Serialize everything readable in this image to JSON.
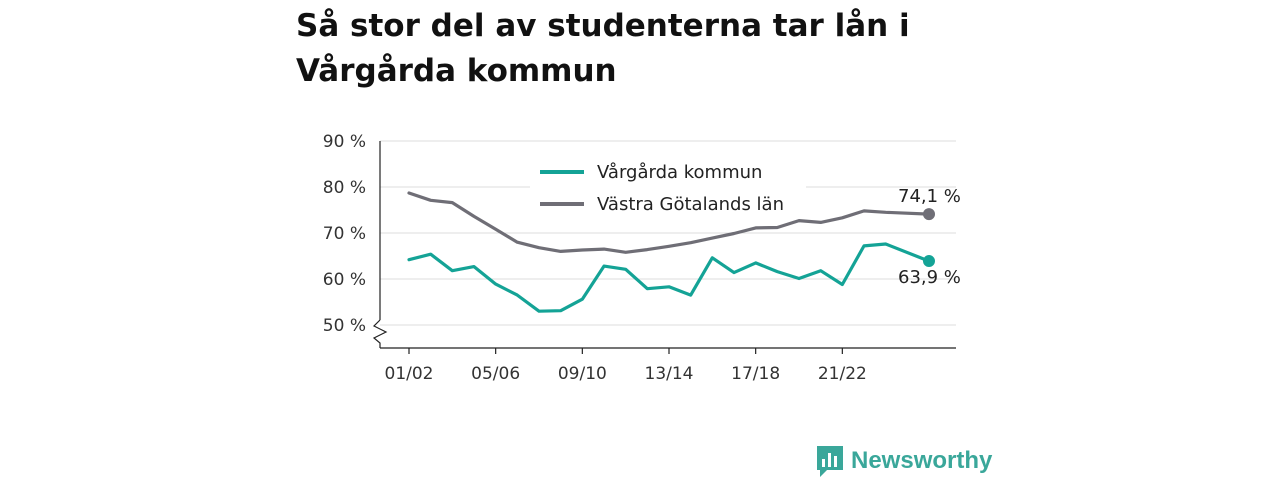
{
  "title": "Så stor del av studenterna tar lån i Vårgårda kommun",
  "brand": {
    "name": "Newsworthy",
    "color": "#3aa79a",
    "icon": "bar-chart-icon"
  },
  "chart_data": {
    "type": "line",
    "title": "Så stor del av studenterna tar lån i Vårgårda kommun",
    "xlabel": "",
    "ylabel": "",
    "x": [
      1,
      2,
      3,
      4,
      5,
      6,
      7,
      8,
      9,
      10,
      11,
      12,
      13,
      14,
      15,
      16,
      17,
      18,
      19,
      20,
      21,
      22,
      23,
      24,
      25
    ],
    "x_ticks": [
      {
        "x": 1,
        "label": "01/02"
      },
      {
        "x": 5,
        "label": "05/06"
      },
      {
        "x": 9,
        "label": "09/10"
      },
      {
        "x": 13,
        "label": "13/14"
      },
      {
        "x": 17,
        "label": "17/18"
      },
      {
        "x": 21,
        "label": "21/22"
      }
    ],
    "y_ticks": [
      {
        "value": 50,
        "label": "50 %"
      },
      {
        "value": 60,
        "label": "60 %"
      },
      {
        "value": 70,
        "label": "70 %"
      },
      {
        "value": 80,
        "label": "80 %"
      },
      {
        "value": 90,
        "label": "90 %"
      }
    ],
    "ylim": [
      45.5,
      90
    ],
    "xlim": [
      1,
      25
    ],
    "y_axis_break": true,
    "grid": true,
    "legend": "top-center",
    "series": [
      {
        "name": "Vårgårda kommun",
        "color": "#14a396",
        "values": [
          64.2,
          65.4,
          61.8,
          62.7,
          58.9,
          56.5,
          53.0,
          53.1,
          55.6,
          62.8,
          62.1,
          57.9,
          58.3,
          56.5,
          64.6,
          61.4,
          63.5,
          61.6,
          60.1,
          61.8,
          58.8,
          67.2,
          67.6,
          null,
          63.9
        ],
        "end_label": "63,9 %"
      },
      {
        "name": "Västra Götalands län",
        "color": "#6f6e76",
        "values": [
          78.7,
          77.1,
          76.6,
          73.6,
          70.8,
          68.0,
          66.8,
          66.0,
          66.3,
          66.5,
          65.8,
          66.4,
          67.1,
          67.9,
          68.9,
          69.9,
          71.1,
          71.2,
          72.7,
          72.3,
          73.3,
          74.8,
          74.5,
          null,
          74.1
        ],
        "end_label": "74,1 %"
      }
    ]
  }
}
